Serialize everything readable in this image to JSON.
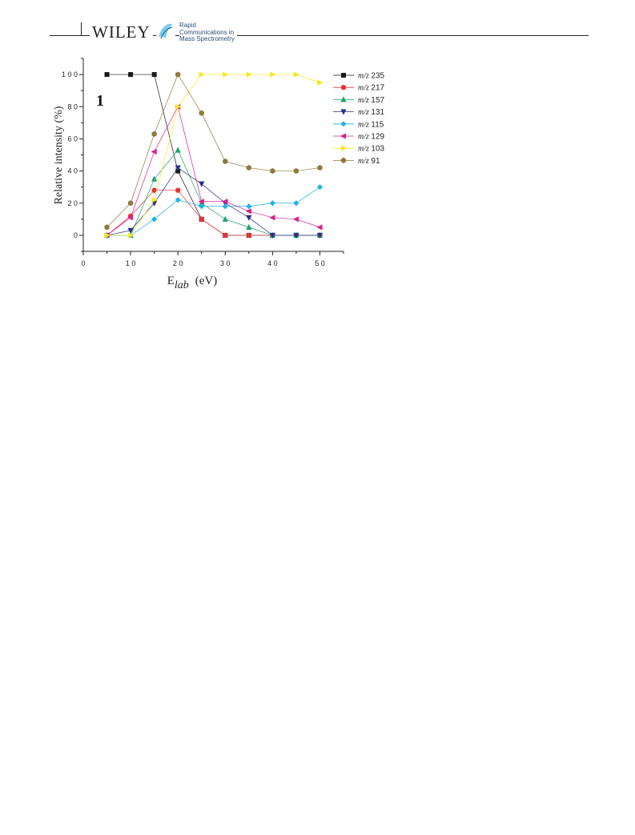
{
  "header": {
    "publisher": "WILEY",
    "journal_lines": [
      "Rapid",
      "Communications in",
      "Mass Spectrometry"
    ]
  },
  "chart_data": {
    "type": "line",
    "panel_label": "1",
    "xlabel_main": "E",
    "xlabel_sub": "lab",
    "xlabel_unit": "(eV)",
    "ylabel": "Relative intensity (%)",
    "xlim": [
      0,
      55
    ],
    "ylim": [
      -10,
      110
    ],
    "x_ticks": [
      "0",
      "1 0",
      "2 0",
      "3 0",
      "4 0",
      "5 0"
    ],
    "x_tick_values": [
      0,
      10,
      20,
      30,
      40,
      50
    ],
    "y_ticks": [
      "0",
      "2 0",
      "4 0",
      "6 0",
      "8 0",
      "1 0 0"
    ],
    "y_tick_values": [
      0,
      20,
      40,
      60,
      80,
      100
    ],
    "x": [
      5,
      10,
      15,
      20,
      25,
      30,
      35,
      40,
      45,
      50
    ],
    "legend_position": "right",
    "legend_prefix": "m/z",
    "series": [
      {
        "name": "235",
        "color": "#1a1a1a",
        "marker": "square",
        "values": [
          100,
          100,
          100,
          40,
          10,
          0,
          0,
          0,
          0,
          0
        ]
      },
      {
        "name": "217",
        "color": "#e8333a",
        "marker": "circle",
        "values": [
          0,
          12,
          28,
          28,
          10,
          0,
          0,
          0,
          0,
          0
        ]
      },
      {
        "name": "157",
        "color": "#1aa56a",
        "marker": "triangle-up",
        "values": [
          0,
          0,
          35,
          53,
          20,
          10,
          5,
          0,
          0,
          0
        ]
      },
      {
        "name": "131",
        "color": "#2a2f8c",
        "marker": "triangle-down",
        "values": [
          0,
          3,
          20,
          42,
          32,
          20,
          11,
          0,
          0,
          0
        ]
      },
      {
        "name": "115",
        "color": "#1fb3e6",
        "marker": "diamond",
        "values": [
          0,
          0,
          10,
          22,
          18,
          18,
          18,
          20,
          20,
          30
        ]
      },
      {
        "name": "129",
        "color": "#d9208e",
        "marker": "triangle-left",
        "values": [
          0,
          11,
          52,
          80,
          21,
          21,
          15,
          11,
          10,
          5
        ]
      },
      {
        "name": "103",
        "color": "#f5ea1c",
        "marker": "triangle-right",
        "values": [
          0,
          0,
          22,
          80,
          100,
          100,
          100,
          100,
          100,
          95
        ]
      },
      {
        "name": "91",
        "color": "#8f7a3c",
        "marker": "hexagon",
        "values": [
          5,
          20,
          63,
          100,
          76,
          46,
          42,
          40,
          40,
          42
        ]
      }
    ]
  }
}
